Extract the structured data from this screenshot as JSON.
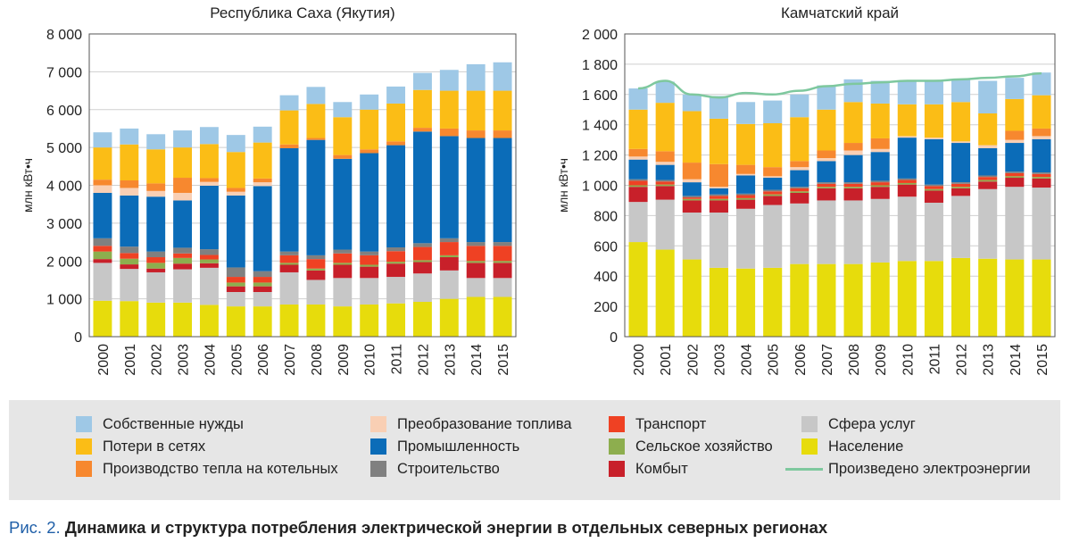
{
  "figure": {
    "caption_prefix": "Рис. 2.",
    "caption_text": "Динамика и структура потребления электрической энергии в отдельных северных регионах"
  },
  "legend": [
    {
      "key": "sobstv",
      "label": "Собственные нужды",
      "color": "#9ec8e6",
      "kind": "box"
    },
    {
      "key": "poteri",
      "label": "Потери в сетях",
      "color": "#fbbd16",
      "kind": "box"
    },
    {
      "key": "kotel",
      "label": "Производство тепла на котельных",
      "color": "#f7882f",
      "kind": "box"
    },
    {
      "key": "preobr",
      "label": "Преобразование топлива",
      "color": "#f9cfb4",
      "kind": "box"
    },
    {
      "key": "prom",
      "label": "Промышленность",
      "color": "#0b6cb8",
      "kind": "box"
    },
    {
      "key": "stroi",
      "label": "Строительство",
      "color": "#808080",
      "kind": "box"
    },
    {
      "key": "transp",
      "label": "Транспорт",
      "color": "#ef4123",
      "kind": "box"
    },
    {
      "key": "selkh",
      "label": "Сельское хозяйство",
      "color": "#8dae4e",
      "kind": "box"
    },
    {
      "key": "kombyt",
      "label": "Комбыт",
      "color": "#c8202a",
      "kind": "box"
    },
    {
      "key": "sfera",
      "label": "Сфера услуг",
      "color": "#c7c7c7",
      "kind": "box"
    },
    {
      "key": "nasel",
      "label": "Население",
      "color": "#e7dc0c",
      "kind": "box"
    },
    {
      "key": "proizv",
      "label": "Произведено электроэнергии",
      "color": "#7ec89e",
      "kind": "line"
    }
  ],
  "chart_data": [
    {
      "type": "bar",
      "stacked": true,
      "title": "Республика Саха (Якутия)",
      "ylabel": "млн кВт•ч",
      "ylim": [
        0,
        8000
      ],
      "yticks": [
        0,
        1000,
        2000,
        3000,
        4000,
        5000,
        6000,
        7000,
        8000
      ],
      "ytick_labels": [
        "0",
        "1 000",
        "2 000",
        "3 000",
        "4 000",
        "5 000",
        "6 000",
        "7 000",
        "8 000"
      ],
      "categories": [
        "2000",
        "2001",
        "2002",
        "2003",
        "2004",
        "2005",
        "2006",
        "2007",
        "2008",
        "2009",
        "2010",
        "2011",
        "2012",
        "2013",
        "2014",
        "2015"
      ],
      "series": [
        {
          "name": "Население",
          "key": "nasel",
          "values": [
            950,
            940,
            900,
            900,
            840,
            800,
            800,
            850,
            850,
            800,
            850,
            880,
            920,
            1000,
            1050,
            1050
          ]
        },
        {
          "name": "Сфера услуг",
          "key": "sfera",
          "values": [
            1000,
            850,
            800,
            880,
            980,
            380,
            380,
            850,
            650,
            750,
            700,
            700,
            750,
            750,
            500,
            500
          ]
        },
        {
          "name": "Комбыт",
          "key": "kombyt",
          "values": [
            100,
            120,
            100,
            150,
            120,
            150,
            150,
            200,
            250,
            350,
            300,
            350,
            300,
            350,
            400,
            400
          ]
        },
        {
          "name": "Сельское хозяйство",
          "key": "selkh",
          "values": [
            200,
            150,
            150,
            150,
            100,
            100,
            100,
            50,
            50,
            50,
            50,
            50,
            50,
            50,
            50,
            50
          ]
        },
        {
          "name": "Транспорт",
          "key": "transp",
          "values": [
            150,
            150,
            150,
            120,
            120,
            150,
            150,
            200,
            250,
            250,
            250,
            280,
            350,
            350,
            400,
            400
          ]
        },
        {
          "name": "Строительство",
          "key": "stroi",
          "values": [
            200,
            170,
            150,
            150,
            150,
            250,
            150,
            100,
            100,
            100,
            100,
            100,
            100,
            100,
            100,
            100
          ]
        },
        {
          "name": "Промышленность",
          "key": "prom",
          "values": [
            1200,
            1350,
            1450,
            1250,
            1680,
            1900,
            2250,
            2730,
            3050,
            2400,
            2600,
            2700,
            2950,
            2700,
            2750,
            2750
          ]
        },
        {
          "name": "Преобразование топлива",
          "key": "preobr",
          "values": [
            200,
            200,
            150,
            200,
            100,
            100,
            100,
            0,
            0,
            0,
            0,
            0,
            0,
            0,
            0,
            0
          ]
        },
        {
          "name": "Производство тепла на котельных",
          "key": "kotel",
          "values": [
            150,
            200,
            200,
            400,
            100,
            100,
            100,
            100,
            50,
            100,
            100,
            100,
            100,
            200,
            200,
            200
          ]
        },
        {
          "name": "Потери в сетях",
          "key": "poteri",
          "values": [
            850,
            950,
            900,
            800,
            900,
            950,
            950,
            900,
            900,
            1000,
            1050,
            1000,
            1000,
            1000,
            1050,
            1050
          ]
        },
        {
          "name": "Собственные нужды",
          "key": "sobstv",
          "values": [
            400,
            420,
            400,
            450,
            450,
            450,
            420,
            400,
            450,
            400,
            400,
            450,
            450,
            550,
            700,
            750
          ]
        }
      ]
    },
    {
      "type": "bar",
      "stacked": true,
      "title": "Камчатский край",
      "ylabel": "млн кВт•ч",
      "ylim": [
        0,
        2000
      ],
      "yticks": [
        0,
        200,
        400,
        600,
        800,
        1000,
        1200,
        1400,
        1600,
        1800,
        2000
      ],
      "ytick_labels": [
        "0",
        "200",
        "400",
        "600",
        "800",
        "1 000",
        "1 200",
        "1 400",
        "1 600",
        "1 800",
        "2 000"
      ],
      "categories": [
        "2000",
        "2001",
        "2002",
        "2003",
        "2004",
        "2005",
        "2006",
        "2007",
        "2008",
        "2009",
        "2010",
        "2011",
        "2012",
        "2013",
        "2014",
        "2015"
      ],
      "series": [
        {
          "name": "Население",
          "key": "nasel",
          "values": [
            625,
            575,
            510,
            455,
            450,
            455,
            480,
            480,
            480,
            490,
            500,
            500,
            520,
            515,
            510,
            510
          ]
        },
        {
          "name": "Сфера услуг",
          "key": "sfera",
          "values": [
            265,
            330,
            310,
            365,
            395,
            415,
            400,
            420,
            420,
            420,
            425,
            385,
            410,
            460,
            480,
            475
          ]
        },
        {
          "name": "Комбыт",
          "key": "kombyt",
          "values": [
            100,
            90,
            80,
            80,
            60,
            60,
            70,
            80,
            80,
            80,
            80,
            80,
            50,
            50,
            60,
            60
          ]
        },
        {
          "name": "Сельское хозяйство",
          "key": "selkh",
          "values": [
            10,
            10,
            10,
            10,
            10,
            10,
            10,
            10,
            10,
            10,
            10,
            10,
            10,
            10,
            10,
            10
          ]
        },
        {
          "name": "Транспорт",
          "key": "transp",
          "values": [
            30,
            20,
            10,
            20,
            20,
            20,
            20,
            20,
            20,
            20,
            20,
            20,
            20,
            20,
            20,
            20
          ]
        },
        {
          "name": "Строительство",
          "key": "stroi",
          "values": [
            10,
            10,
            10,
            10,
            10,
            10,
            10,
            10,
            10,
            10,
            10,
            10,
            10,
            10,
            10,
            10
          ]
        },
        {
          "name": "Промышленность",
          "key": "prom",
          "values": [
            130,
            100,
            90,
            40,
            120,
            80,
            110,
            140,
            180,
            190,
            270,
            300,
            260,
            180,
            190,
            220
          ]
        },
        {
          "name": "Преобразование топлива",
          "key": "preobr",
          "values": [
            20,
            20,
            20,
            10,
            10,
            10,
            20,
            20,
            30,
            20,
            10,
            10,
            10,
            20,
            20,
            20
          ]
        },
        {
          "name": "Производство тепла на котельных",
          "key": "kotel",
          "values": [
            50,
            70,
            110,
            150,
            60,
            60,
            40,
            50,
            50,
            70,
            0,
            0,
            0,
            0,
            60,
            50
          ]
        },
        {
          "name": "Потери в сетях",
          "key": "poteri",
          "values": [
            260,
            320,
            340,
            300,
            270,
            290,
            290,
            270,
            270,
            230,
            210,
            220,
            260,
            210,
            210,
            220
          ]
        },
        {
          "name": "Собственные нужды",
          "key": "sobstv",
          "values": [
            140,
            140,
            110,
            150,
            145,
            150,
            150,
            160,
            150,
            150,
            150,
            150,
            150,
            215,
            140,
            150
          ]
        }
      ],
      "line": {
        "name": "Произведено электроэнергии",
        "key": "proizv",
        "values": [
          1640,
          1690,
          1600,
          1580,
          1610,
          1600,
          1625,
          1655,
          1670,
          1680,
          1690,
          1690,
          1700,
          1710,
          1720,
          1740
        ]
      }
    }
  ]
}
